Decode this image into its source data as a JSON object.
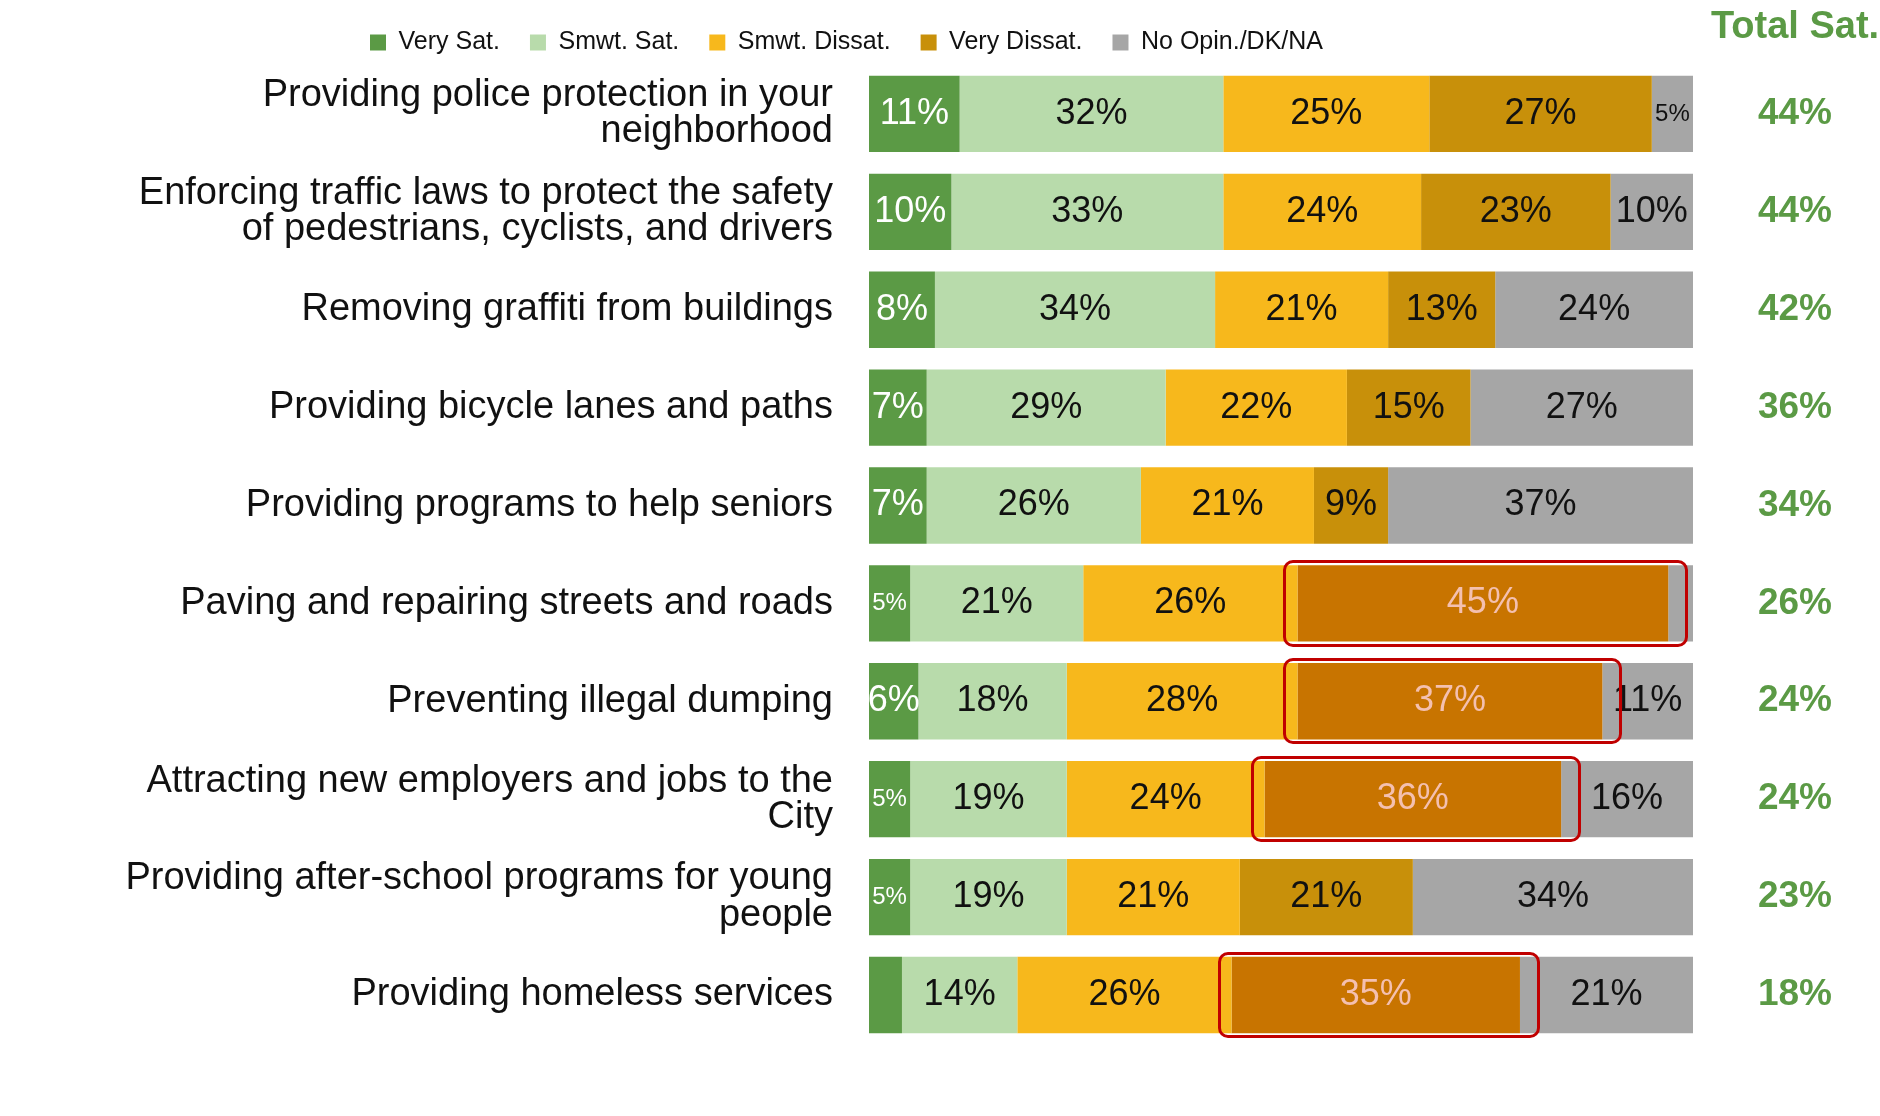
{
  "chart_data": {
    "type": "bar",
    "orientation": "horizontal",
    "stacked": true,
    "legend": "top",
    "tick_labels": "y",
    "grid": false,
    "xlim": [
      0,
      100
    ],
    "categories": [
      "Providing police protection in your neighborhood",
      "Enforcing traffic laws to protect the safety of pedestrians, cyclists, and drivers",
      "Removing graffiti from buildings",
      "Providing bicycle lanes and paths",
      "Providing programs to help seniors",
      "Paving and repairing streets and roads",
      "Preventing illegal dumping",
      "Attracting new employers and jobs to the City",
      "Providing after-school programs for young people",
      "Providing homeless services"
    ],
    "series": [
      {
        "name": "Very Sat.",
        "color": "#5b9a45",
        "values": [
          11,
          10,
          8,
          7,
          7,
          5,
          6,
          5,
          5,
          4
        ],
        "value_labels": [
          "11%",
          "10%",
          "8%",
          "7%",
          "7%",
          "5%",
          "6%",
          "5%",
          "5%",
          null
        ]
      },
      {
        "name": "Smwt. Sat.",
        "color": "#b8dbab",
        "values": [
          32,
          33,
          34,
          29,
          26,
          21,
          18,
          19,
          19,
          14
        ],
        "value_labels": [
          "32%",
          "33%",
          "34%",
          "29%",
          "26%",
          "21%",
          "18%",
          "19%",
          "19%",
          "14%"
        ]
      },
      {
        "name": "Smwt. Dissat.",
        "color": "#f7b81c",
        "values": [
          25,
          24,
          21,
          22,
          21,
          26,
          28,
          24,
          21,
          26
        ],
        "value_labels": [
          "25%",
          "24%",
          "21%",
          "22%",
          "21%",
          "26%",
          "28%",
          "24%",
          "21%",
          "26%"
        ]
      },
      {
        "name": "Very Dissat.",
        "color": "#c8900a",
        "colors": [
          "#c8900a",
          "#c8900a",
          "#c8900a",
          "#c8900a",
          "#c8900a",
          "#c87400",
          "#c87400",
          "#c87400",
          "#c8900a",
          "#c87400"
        ],
        "values": [
          27,
          23,
          13,
          15,
          9,
          45,
          37,
          36,
          21,
          35
        ],
        "value_labels": [
          "27%",
          "23%",
          "13%",
          "15%",
          "9%",
          "45%",
          "37%",
          "36%",
          "21%",
          "35%"
        ]
      },
      {
        "name": "No Opin./DK/NA",
        "color": "#a6a6a6",
        "values": [
          5,
          10,
          24,
          27,
          37,
          3,
          11,
          16,
          34,
          21
        ],
        "value_labels": [
          "5%",
          "10%",
          "24%",
          "27%",
          "37%",
          null,
          "11%",
          "16%",
          "34%",
          "21%"
        ]
      }
    ],
    "annotations": [
      "Total Sat.",
      "44%",
      "44%",
      "42%",
      "36%",
      "34%",
      "26%",
      "24%",
      "24%",
      "23%",
      "18%"
    ]
  }
}
